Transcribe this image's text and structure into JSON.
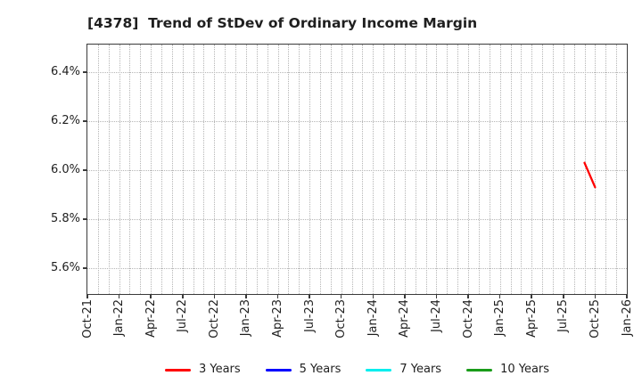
{
  "window": {
    "title": "[4378]  Trend of StDev of Ordinary Income Margin"
  },
  "chart_data": {
    "type": "line",
    "title": "[4378]  Trend of StDev of Ordinary Income Margin",
    "x_axis": {
      "tick_labels": [
        "Oct-21",
        "Jan-22",
        "Apr-22",
        "Jul-22",
        "Oct-22",
        "Jan-23",
        "Apr-23",
        "Jul-23",
        "Oct-23",
        "Jan-24",
        "Apr-24",
        "Jul-24",
        "Oct-24",
        "Jan-25",
        "Apr-25",
        "Jul-25",
        "Oct-25",
        "Jan-26"
      ],
      "months_per_tick": 3,
      "total_months": 51,
      "minor_grid": "monthly"
    },
    "y_axis": {
      "tick_labels": [
        "5.6%",
        "5.8%",
        "6.0%",
        "6.2%",
        "6.4%"
      ],
      "tick_values": [
        5.6,
        5.8,
        6.0,
        6.2,
        6.4
      ],
      "ylim": [
        5.494,
        6.513
      ],
      "unit": "%"
    },
    "grid": {
      "style": "dotted",
      "color": "#b5b5b5"
    },
    "legend": {
      "position": "bottom",
      "items": [
        {
          "label": "3 Years",
          "color": "#ff0000"
        },
        {
          "label": "5 Years",
          "color": "#0000ff"
        },
        {
          "label": "7 Years",
          "color": "#00eeee"
        },
        {
          "label": "10 Years",
          "color": "#1a9c1a"
        }
      ]
    },
    "series": [
      {
        "name": "3 Years",
        "color": "#ff0000",
        "points": [
          [
            "Sep-25",
            6.03
          ],
          [
            "Oct-25",
            5.93
          ]
        ]
      },
      {
        "name": "5 Years",
        "color": "#0000ff",
        "points": []
      },
      {
        "name": "7 Years",
        "color": "#00eeee",
        "points": []
      },
      {
        "name": "10 Years",
        "color": "#1a9c1a",
        "points": []
      }
    ]
  }
}
